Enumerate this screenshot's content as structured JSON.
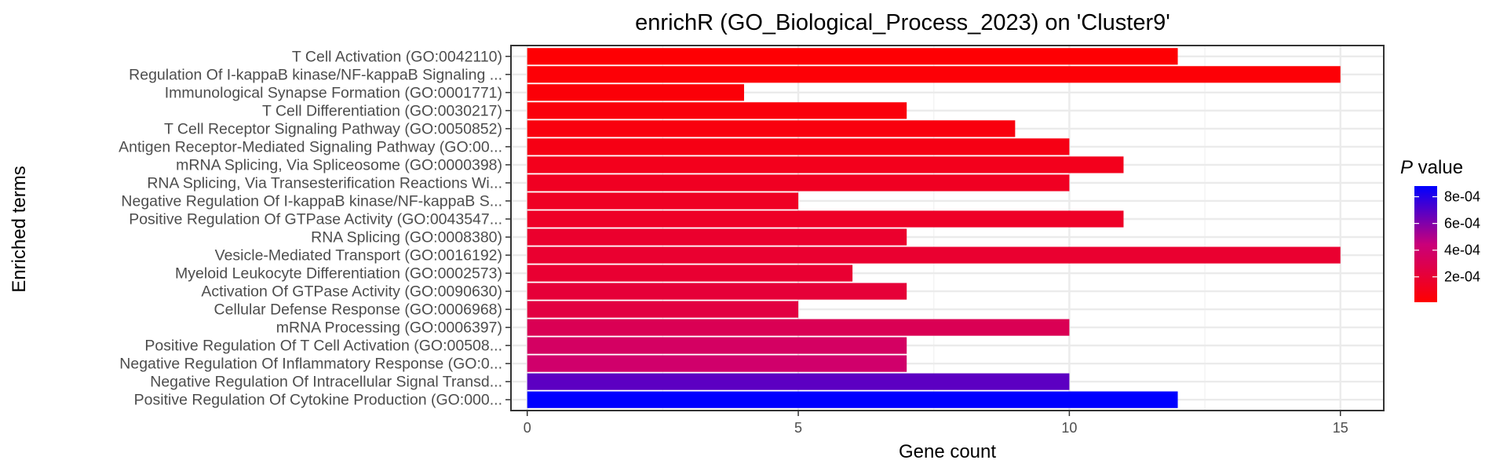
{
  "chart_data": {
    "type": "bar",
    "orientation": "horizontal",
    "title": "enrichR (GO_Biological_Process_2023) on 'Cluster9'",
    "xlabel": "Gene count",
    "ylabel": "Enriched terms",
    "xlim": [
      -0.3,
      15.8
    ],
    "x_ticks": [
      0,
      5,
      10,
      15
    ],
    "grid": true,
    "legend_position": "right",
    "legend": {
      "title_italic": "P",
      "title_rest": " value",
      "color_low": "#ff0000",
      "color_high": "#0000ff",
      "range": [
        1e-05,
        0.00088
      ],
      "ticks": [
        {
          "value": 0.0002,
          "label": "2e-04"
        },
        {
          "value": 0.0004,
          "label": "4e-04"
        },
        {
          "value": 0.0006,
          "label": "6e-04"
        },
        {
          "value": 0.0008,
          "label": "8e-04"
        }
      ]
    },
    "categories": [
      "T Cell Activation (GO:0042110)",
      "Regulation Of I-kappaB kinase/NF-kappaB Signaling ...",
      "Immunological Synapse Formation (GO:0001771)",
      "T Cell Differentiation (GO:0030217)",
      "T Cell Receptor Signaling Pathway (GO:0050852)",
      "Antigen Receptor-Mediated Signaling Pathway (GO:00...",
      "mRNA Splicing, Via Spliceosome (GO:0000398)",
      "RNA Splicing, Via Transesterification Reactions Wi...",
      "Negative Regulation Of I-kappaB kinase/NF-kappaB S...",
      "Positive Regulation Of GTPase Activity (GO:0043547...",
      "RNA Splicing (GO:0008380)",
      "Vesicle-Mediated Transport (GO:0016192)",
      "Myeloid Leukocyte Differentiation (GO:0002573)",
      "Activation Of GTPase Activity (GO:0090630)",
      "Cellular Defense Response (GO:0006968)",
      "mRNA Processing (GO:0006397)",
      "Positive Regulation Of T Cell Activation (GO:00508...",
      "Negative Regulation Of Inflammatory Response (GO:0...",
      "Negative Regulation Of Intracellular Signal Transd...",
      "Positive Regulation Of Cytokine Production (GO:000..."
    ],
    "values": [
      12,
      15,
      4,
      7,
      9,
      10,
      11,
      10,
      5,
      11,
      7,
      15,
      6,
      7,
      5,
      10,
      7,
      7,
      10,
      12
    ],
    "p_values": [
      2e-05,
      3e-05,
      4e-05,
      5e-05,
      6e-05,
      8e-05,
      0.00011,
      0.00013,
      0.00014,
      0.00015,
      0.00017,
      0.00018,
      0.00019,
      0.00021,
      0.00024,
      0.00031,
      0.00036,
      0.00039,
      0.00068,
      0.00088
    ]
  }
}
